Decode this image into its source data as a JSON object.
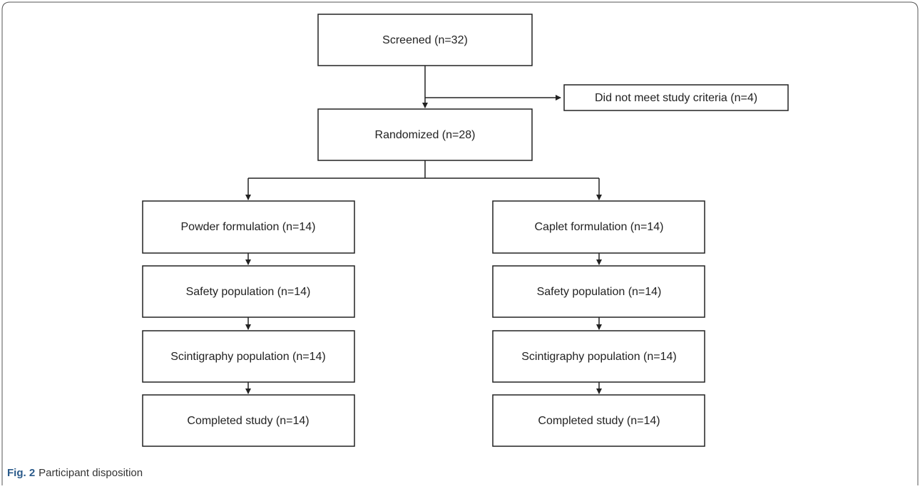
{
  "nodes": [
    {
      "label": "Screened (n=32)"
    },
    {
      "label": "Did not meet study criteria (n=4)"
    },
    {
      "label": "Randomized (n=28)"
    },
    {
      "label": "Powder formulation (n=14)"
    },
    {
      "label": "Caplet formulation (n=14)"
    },
    {
      "label": "Safety population (n=14)"
    },
    {
      "label": "Safety population (n=14)"
    },
    {
      "label": "Scintigraphy population (n=14)"
    },
    {
      "label": "Scintigraphy population (n=14)"
    },
    {
      "label": "Completed study (n=14)"
    },
    {
      "label": "Completed study (n=14)"
    }
  ],
  "caption": {
    "label": "Fig. 2",
    "text": "Participant disposition"
  }
}
